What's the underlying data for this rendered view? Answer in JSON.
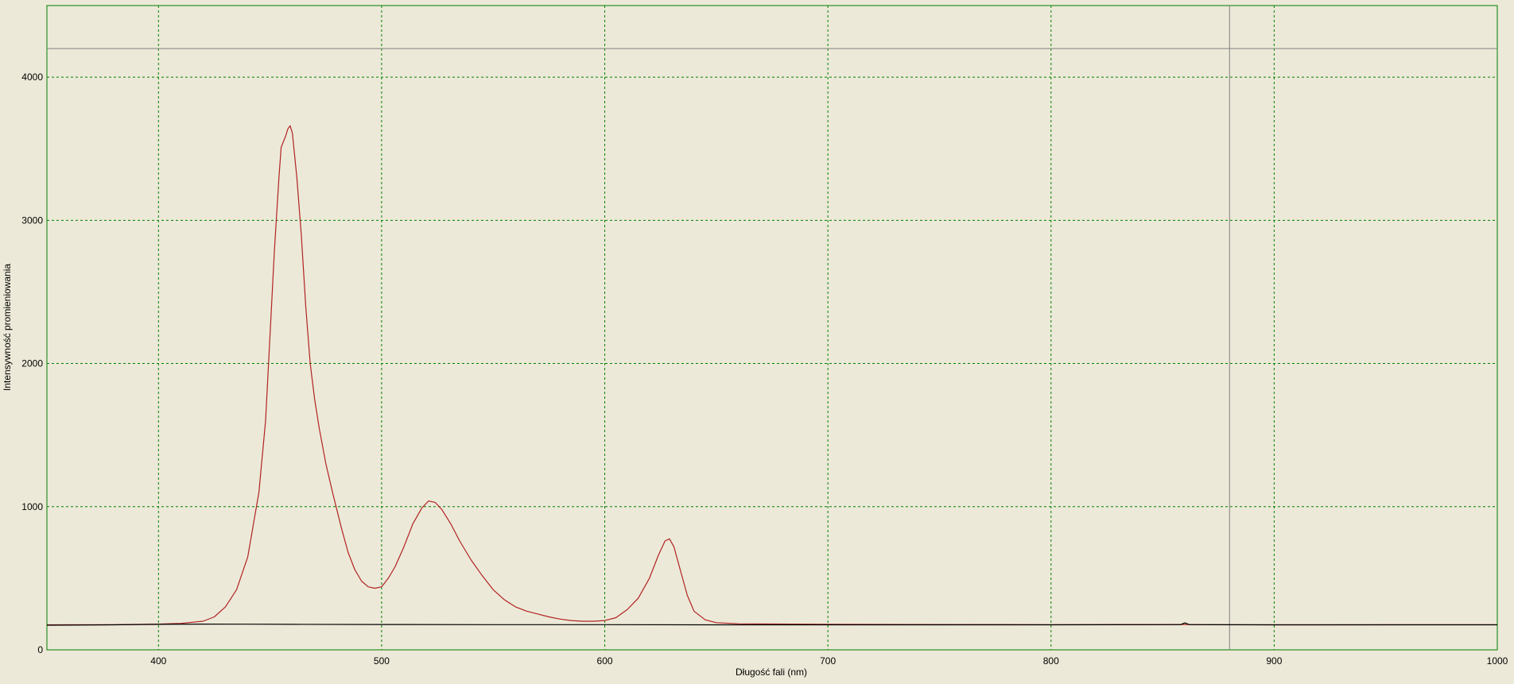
{
  "chart_data": {
    "type": "line",
    "title": "",
    "xlabel": "Długość fali (nm)",
    "ylabel": "Intensywność promieniowania",
    "xlim": [
      350,
      1000
    ],
    "ylim": [
      0,
      4500
    ],
    "x_ticks": [
      400,
      500,
      600,
      700,
      800,
      900,
      1000
    ],
    "y_ticks": [
      0,
      1000,
      2000,
      3000,
      4000
    ],
    "grid": true,
    "grid_color": "#008000",
    "plot_background": "#ece9d8",
    "reference_lines": {
      "horizontal_y": 4200,
      "vertical_x": 880,
      "color": "#808080"
    },
    "series": [
      {
        "color": "#b22222",
        "points": [
          [
            350,
            175
          ],
          [
            380,
            176
          ],
          [
            400,
            180
          ],
          [
            410,
            185
          ],
          [
            420,
            200
          ],
          [
            425,
            230
          ],
          [
            430,
            300
          ],
          [
            435,
            420
          ],
          [
            440,
            650
          ],
          [
            445,
            1100
          ],
          [
            448,
            1600
          ],
          [
            450,
            2200
          ],
          [
            452,
            2800
          ],
          [
            454,
            3300
          ],
          [
            455,
            3510
          ],
          [
            457,
            3590
          ],
          [
            458,
            3640
          ],
          [
            459,
            3660
          ],
          [
            460,
            3610
          ],
          [
            462,
            3300
          ],
          [
            464,
            2900
          ],
          [
            466,
            2400
          ],
          [
            468,
            2000
          ],
          [
            470,
            1750
          ],
          [
            472,
            1550
          ],
          [
            475,
            1300
          ],
          [
            478,
            1100
          ],
          [
            482,
            850
          ],
          [
            485,
            680
          ],
          [
            488,
            560
          ],
          [
            491,
            480
          ],
          [
            494,
            440
          ],
          [
            497,
            430
          ],
          [
            500,
            440
          ],
          [
            503,
            500
          ],
          [
            506,
            580
          ],
          [
            510,
            720
          ],
          [
            514,
            880
          ],
          [
            518,
            990
          ],
          [
            521,
            1040
          ],
          [
            524,
            1030
          ],
          [
            527,
            980
          ],
          [
            531,
            880
          ],
          [
            535,
            760
          ],
          [
            540,
            630
          ],
          [
            545,
            520
          ],
          [
            550,
            420
          ],
          [
            555,
            350
          ],
          [
            560,
            300
          ],
          [
            565,
            270
          ],
          [
            570,
            250
          ],
          [
            575,
            230
          ],
          [
            580,
            215
          ],
          [
            585,
            205
          ],
          [
            590,
            200
          ],
          [
            595,
            200
          ],
          [
            600,
            205
          ],
          [
            605,
            225
          ],
          [
            610,
            280
          ],
          [
            615,
            360
          ],
          [
            620,
            500
          ],
          [
            624,
            660
          ],
          [
            627,
            760
          ],
          [
            629,
            775
          ],
          [
            631,
            720
          ],
          [
            634,
            550
          ],
          [
            637,
            380
          ],
          [
            640,
            270
          ],
          [
            645,
            210
          ],
          [
            650,
            190
          ],
          [
            660,
            182
          ],
          [
            700,
            178
          ],
          [
            800,
            176
          ],
          [
            860,
            177
          ],
          [
            870,
            176
          ],
          [
            900,
            175
          ],
          [
            1000,
            176
          ]
        ]
      },
      {
        "color": "#000000",
        "points": [
          [
            350,
            172
          ],
          [
            380,
            175
          ],
          [
            400,
            178
          ],
          [
            420,
            180
          ],
          [
            440,
            179
          ],
          [
            460,
            178
          ],
          [
            500,
            177
          ],
          [
            550,
            176
          ],
          [
            600,
            176
          ],
          [
            650,
            175
          ],
          [
            700,
            175
          ],
          [
            800,
            175
          ],
          [
            858,
            176
          ],
          [
            860,
            188
          ],
          [
            862,
            176
          ],
          [
            900,
            175
          ],
          [
            1000,
            175
          ]
        ]
      }
    ]
  }
}
